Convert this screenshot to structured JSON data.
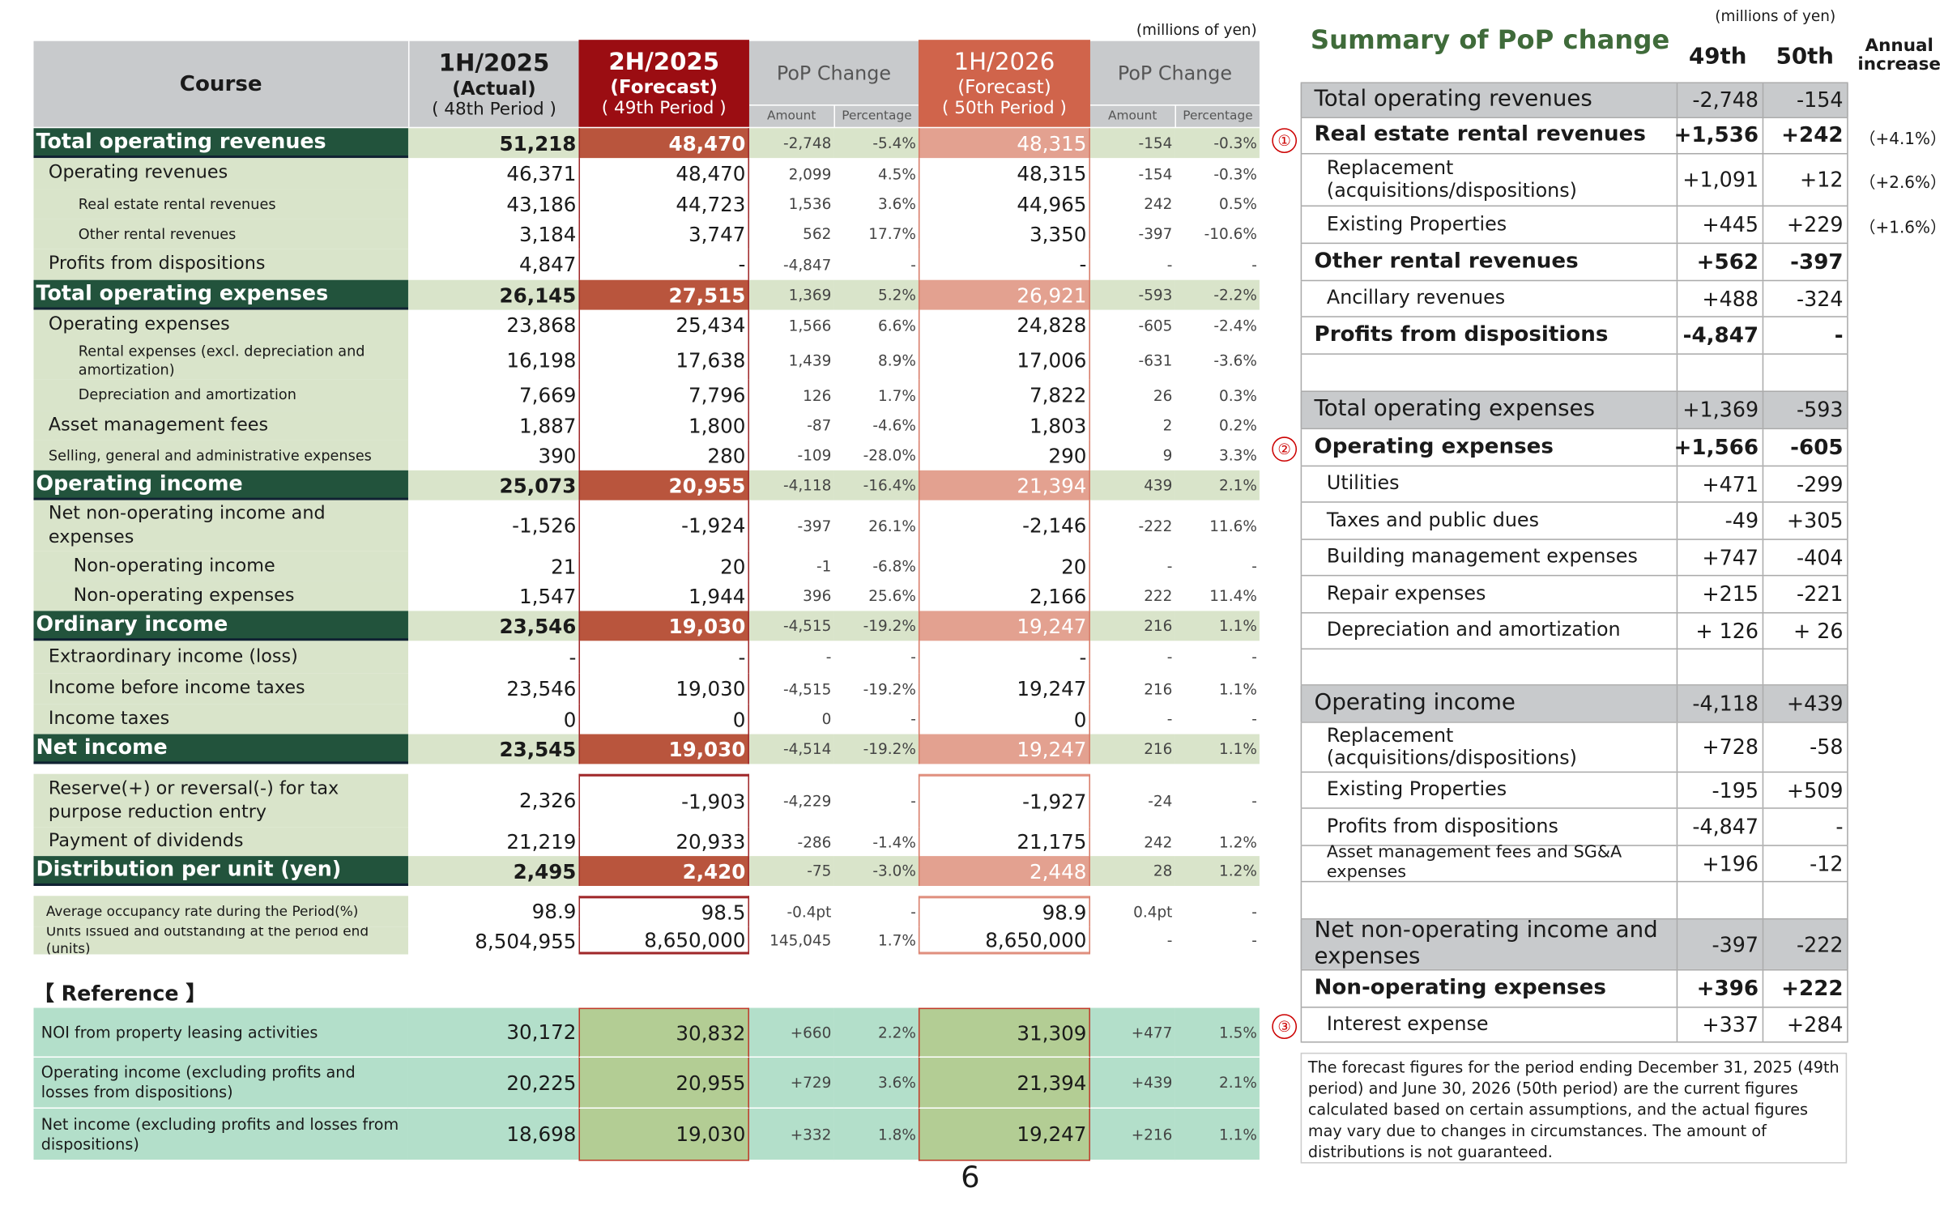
{
  "left": {
    "unit_note": "(millions of yen)",
    "header": {
      "course": "Course",
      "p48": {
        "title": "1H/2025",
        "sub": "(Actual)",
        "period": "( 48th Period )"
      },
      "p49": {
        "title": "2H/2025",
        "sub": "(Forecast)",
        "period": "( 49th Period )"
      },
      "p50": {
        "title": "1H/2026",
        "sub": "(Forecast)",
        "period": "( 50th Period )"
      },
      "pop1": "PoP Change",
      "pop2": "PoP Change",
      "amount": "Amount",
      "percentage": "Percentage"
    },
    "colors": {
      "dark_green": "#22533c",
      "light_green": "#d9e4ca",
      "p49": "#9b0d12",
      "p50": "#d0644b"
    },
    "rows": [
      {
        "kind": "bold",
        "label": "Total operating revenues",
        "v": [
          "51,218",
          "48,470",
          "-2,748",
          "-5.4%",
          "48,315",
          "-154",
          "-0.3%"
        ]
      },
      {
        "kind": "i1",
        "label": "Operating revenues",
        "v": [
          "46,371",
          "48,470",
          "2,099",
          "4.5%",
          "48,315",
          "-154",
          "-0.3%"
        ]
      },
      {
        "kind": "i2",
        "label": "Real estate rental revenues",
        "v": [
          "43,186",
          "44,723",
          "1,536",
          "3.6%",
          "44,965",
          "242",
          "0.5%"
        ]
      },
      {
        "kind": "i2",
        "label": "Other rental revenues",
        "v": [
          "3,184",
          "3,747",
          "562",
          "17.7%",
          "3,350",
          "-397",
          "-10.6%"
        ]
      },
      {
        "kind": "i1",
        "label": "Profits from dispositions",
        "v": [
          "4,847",
          "-",
          "-4,847",
          "-",
          "-",
          "-",
          "-"
        ]
      },
      {
        "kind": "bold",
        "label": "Total operating expenses",
        "v": [
          "26,145",
          "27,515",
          "1,369",
          "5.2%",
          "26,921",
          "-593",
          "-2.2%"
        ]
      },
      {
        "kind": "i1",
        "label": "Operating expenses",
        "v": [
          "23,868",
          "25,434",
          "1,566",
          "6.6%",
          "24,828",
          "-605",
          "-2.4%"
        ]
      },
      {
        "kind": "i2",
        "label": "Rental expenses (excl. depreciation and amortization)",
        "v": [
          "16,198",
          "17,638",
          "1,439",
          "8.9%",
          "17,006",
          "-631",
          "-3.6%"
        ]
      },
      {
        "kind": "i2",
        "label": "Depreciation and amortization",
        "v": [
          "7,669",
          "7,796",
          "126",
          "1.7%",
          "7,822",
          "26",
          "0.3%"
        ]
      },
      {
        "kind": "i1",
        "label": "Asset management fees",
        "v": [
          "1,887",
          "1,800",
          "-87",
          "-4.6%",
          "1,803",
          "2",
          "0.2%"
        ]
      },
      {
        "kind": "i1s",
        "label": "Selling, general and administrative expenses",
        "v": [
          "390",
          "280",
          "-109",
          "-28.0%",
          "290",
          "9",
          "3.3%"
        ]
      },
      {
        "kind": "bold",
        "label": "Operating income",
        "v": [
          "25,073",
          "20,955",
          "-4,118",
          "-16.4%",
          "21,394",
          "439",
          "2.1%"
        ]
      },
      {
        "kind": "i1",
        "label": "Net non-operating income and expenses",
        "v": [
          "-1,526",
          "-1,924",
          "-397",
          "26.1%",
          "-2,146",
          "-222",
          "11.6%"
        ]
      },
      {
        "kind": "i3",
        "label": "Non-operating income",
        "v": [
          "21",
          "20",
          "-1",
          "-6.8%",
          "20",
          "-",
          "-"
        ]
      },
      {
        "kind": "i3",
        "label": "Non-operating expenses",
        "v": [
          "1,547",
          "1,944",
          "396",
          "25.6%",
          "2,166",
          "222",
          "11.4%"
        ]
      },
      {
        "kind": "bold",
        "label": "Ordinary income",
        "v": [
          "23,546",
          "19,030",
          "-4,515",
          "-19.2%",
          "19,247",
          "216",
          "1.1%"
        ]
      },
      {
        "kind": "i1",
        "label": "Extraordinary income (loss)",
        "v": [
          "-",
          "-",
          "-",
          "-",
          "-",
          "-",
          "-"
        ]
      },
      {
        "kind": "i1",
        "label": "Income before income taxes",
        "v": [
          "23,546",
          "19,030",
          "-4,515",
          "-19.2%",
          "19,247",
          "216",
          "1.1%"
        ]
      },
      {
        "kind": "i1",
        "label": "Income taxes",
        "v": [
          "0",
          "0",
          "0",
          "-",
          "0",
          "-",
          "-"
        ]
      },
      {
        "kind": "bold",
        "label": "Net income",
        "v": [
          "23,545",
          "19,030",
          "-4,514",
          "-19.2%",
          "19,247",
          "216",
          "1.1%"
        ]
      },
      {
        "kind": "i1",
        "label": "Reserve(+) or reversal(-) for tax purpose reduction entry",
        "v": [
          "2,326",
          "-1,903",
          "-4,229",
          "-",
          "-1,927",
          "-24",
          "-"
        ]
      },
      {
        "kind": "i1",
        "label": "Payment of dividends",
        "v": [
          "21,219",
          "20,933",
          "-286",
          "-1.4%",
          "21,175",
          "242",
          "1.2%"
        ]
      },
      {
        "kind": "bold",
        "label": "Distribution per unit (yen)",
        "v": [
          "2,495",
          "2,420",
          "-75",
          "-3.0%",
          "2,448",
          "28",
          "1.2%"
        ]
      },
      {
        "kind": "tiny",
        "label": "Average occupancy rate during the Period(%)",
        "v": [
          "98.9",
          "98.5",
          "-0.4pt",
          "-",
          "98.9",
          "0.4pt",
          "-"
        ]
      },
      {
        "kind": "tiny",
        "label": "Units issued and outstanding at the period end  (units)",
        "v": [
          "8,504,955",
          "8,650,000",
          "145,045",
          "1.7%",
          "8,650,000",
          "-",
          "-"
        ]
      }
    ],
    "reference": {
      "title": "【 Reference 】",
      "rows": [
        {
          "label": "NOI from property leasing activities",
          "v": [
            "30,172",
            "30,832",
            "+660",
            "2.2%",
            "31,309",
            "+477",
            "1.5%"
          ]
        },
        {
          "label": "Operating income (excluding profits and losses from dispositions)",
          "v": [
            "20,225",
            "20,955",
            "+729",
            "3.6%",
            "21,394",
            "+439",
            "2.1%"
          ]
        },
        {
          "label": "Net income (excluding profits and losses from dispositions)",
          "v": [
            "18,698",
            "19,030",
            "+332",
            "1.8%",
            "19,247",
            "+216",
            "1.1%"
          ]
        }
      ]
    }
  },
  "right": {
    "title": "Summary of PoP change",
    "unit_note": "(millions of yen)",
    "col49": "49th",
    "col50": "50th",
    "col_annual": "Annual increase",
    "markers": [
      "①",
      "②",
      "③"
    ],
    "rows": [
      {
        "kind": "gray",
        "label": "Total operating revenues",
        "a": "-2,748",
        "b": "-154"
      },
      {
        "kind": "bold",
        "label": "Real estate rental revenues",
        "a": "+1,536",
        "b": "+242",
        "ann": "（+4.1%）"
      },
      {
        "kind": "ind",
        "label": "Replacement (acquisitions/dispositions)",
        "a": "+1,091",
        "b": "+12",
        "ann": "（+2.6%）"
      },
      {
        "kind": "ind",
        "label": "Existing Properties",
        "a": "+445",
        "b": "+229",
        "ann": "（+1.6%）"
      },
      {
        "kind": "bold",
        "label": "Other rental revenues",
        "a": "+562",
        "b": "-397"
      },
      {
        "kind": "ind",
        "label": "Ancillary revenues",
        "a": "+488",
        "b": "-324"
      },
      {
        "kind": "bold",
        "label": "Profits from dispositions",
        "a": "-4,847",
        "b": "-"
      },
      {
        "kind": "blank",
        "label": "",
        "a": "",
        "b": ""
      },
      {
        "kind": "gray",
        "label": "Total operating expenses",
        "a": "+1,369",
        "b": "-593"
      },
      {
        "kind": "bold",
        "label": "Operating expenses",
        "a": "+1,566",
        "b": "-605"
      },
      {
        "kind": "ind",
        "label": "Utilities",
        "a": "+471",
        "b": "-299"
      },
      {
        "kind": "ind",
        "label": "Taxes and public dues",
        "a": "-49",
        "b": "+305"
      },
      {
        "kind": "ind",
        "label": "Building management expenses",
        "a": "+747",
        "b": "-404"
      },
      {
        "kind": "ind",
        "label": "Repair expenses",
        "a": "+215",
        "b": "-221"
      },
      {
        "kind": "ind",
        "label": "Depreciation and amortization",
        "a": "+ 126",
        "b": "+ 26"
      },
      {
        "kind": "blank",
        "label": "",
        "a": "",
        "b": ""
      },
      {
        "kind": "gray",
        "label": "Operating income",
        "a": "-4,118",
        "b": "+439"
      },
      {
        "kind": "ind",
        "label": "Replacement (acquisitions/dispositions)",
        "a": "+728",
        "b": "-58"
      },
      {
        "kind": "ind",
        "label": "Existing Properties",
        "a": "-195",
        "b": "+509"
      },
      {
        "kind": "ind",
        "label": "Profits from dispositions",
        "a": "-4,847",
        "b": "-"
      },
      {
        "kind": "ind tiny",
        "label": "Asset management fees and SG&A expenses",
        "a": "+196",
        "b": "-12"
      },
      {
        "kind": "blank",
        "label": "",
        "a": "",
        "b": ""
      },
      {
        "kind": "gray",
        "label": "Net non-operating income and expenses",
        "a": "-397",
        "b": "-222"
      },
      {
        "kind": "bold",
        "label": "Non-operating expenses",
        "a": "+396",
        "b": "+222"
      },
      {
        "kind": "ind",
        "label": "Interest expense",
        "a": "+337",
        "b": "+284"
      }
    ],
    "note": "The forecast figures for the period ending December 31, 2025 (49th period) and June 30, 2026 (50th period) are the current figures calculated based on certain assumptions, and the actual figures may vary due to changes in circumstances. The amount of distributions is not guaranteed."
  },
  "page_number": "6"
}
